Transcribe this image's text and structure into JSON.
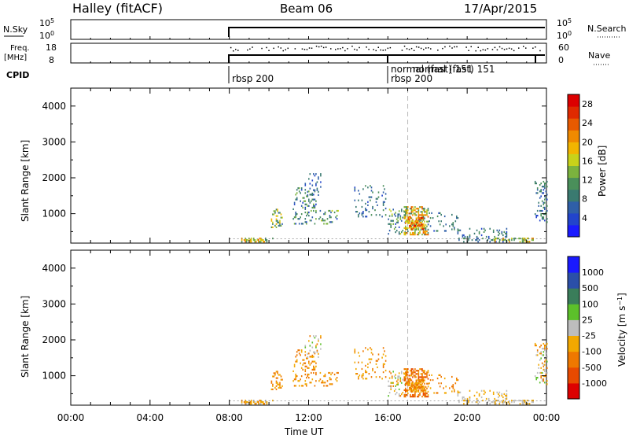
{
  "header": {
    "station": "Halley (fitACF)",
    "beam": "Beam 06",
    "date": "17/Apr/2015"
  },
  "panels": {
    "nsky": {
      "label": "N.Sky",
      "ticks": [
        "10^5",
        "10^0"
      ],
      "right_label": "N.Search",
      "right_ticks": [
        "10^5",
        "10^0"
      ]
    },
    "freq": {
      "label_line1": "Freq.",
      "label_line2": "[MHz]",
      "ticks": [
        "18",
        "8"
      ],
      "right_label": "Nave",
      "right_ticks": [
        "60",
        "0"
      ]
    },
    "cpid": {
      "label": "CPID",
      "entries": [
        {
          "t": 8.0,
          "text": "rbsp 200"
        },
        {
          "t": 16.0,
          "text": "rbsp 200"
        },
        {
          "t": 16.0,
          "text": "normal (fast) 151",
          "overlap": true
        },
        {
          "t": 16.0,
          "text": "normal (fast) 151",
          "overlap": true
        }
      ]
    }
  },
  "chart_data": [
    {
      "type": "heatmap",
      "name": "power",
      "ylabel": "Slant Range [km]",
      "yticks": [
        1000,
        2000,
        3000,
        4000
      ],
      "ylim": [
        180,
        4500
      ],
      "xlim": [
        0,
        24
      ],
      "colorbar": {
        "label": "Power [dB]",
        "ticks": [
          4,
          8,
          12,
          16,
          20,
          24,
          28
        ],
        "range": [
          0,
          30
        ],
        "colors": [
          "#1a1aff",
          "#2244cc",
          "#2f5fa8",
          "#3a7a70",
          "#4a8f5a",
          "#7bb33e",
          "#c8d21a",
          "#f2b500",
          "#f08a00",
          "#e85a00",
          "#e02a00",
          "#dd0000"
        ]
      },
      "echo_clusters": [
        {
          "t0": 8.6,
          "t1": 9.8,
          "r0": 200,
          "r1": 320,
          "v": [
            10,
            24
          ],
          "d": 0.55
        },
        {
          "t0": 9.8,
          "t1": 10.2,
          "r0": 200,
          "r1": 300,
          "v": [
            6,
            14
          ],
          "d": 0.35
        },
        {
          "t0": 10.1,
          "t1": 10.7,
          "r0": 600,
          "r1": 1100,
          "v": [
            6,
            20
          ],
          "d": 0.3
        },
        {
          "t0": 11.2,
          "t1": 12.4,
          "r0": 700,
          "r1": 1700,
          "v": [
            4,
            14
          ],
          "d": 0.16
        },
        {
          "t0": 11.8,
          "t1": 12.6,
          "r0": 1500,
          "r1": 2100,
          "v": [
            4,
            10
          ],
          "d": 0.15
        },
        {
          "t0": 12.5,
          "t1": 13.5,
          "r0": 700,
          "r1": 1100,
          "v": [
            4,
            16
          ],
          "d": 0.2
        },
        {
          "t0": 14.3,
          "t1": 15.9,
          "r0": 900,
          "r1": 1800,
          "v": [
            4,
            12
          ],
          "d": 0.1
        },
        {
          "t0": 16.0,
          "t1": 17.0,
          "r0": 420,
          "r1": 1100,
          "v": [
            4,
            16
          ],
          "d": 0.22
        },
        {
          "t0": 16.8,
          "t1": 18.0,
          "r0": 400,
          "r1": 1200,
          "v": [
            8,
            24
          ],
          "d": 0.52
        },
        {
          "t0": 17.0,
          "t1": 17.8,
          "r0": 550,
          "r1": 900,
          "v": [
            16,
            28
          ],
          "d": 0.55
        },
        {
          "t0": 18.0,
          "t1": 19.6,
          "r0": 500,
          "r1": 1000,
          "v": [
            4,
            12
          ],
          "d": 0.1
        },
        {
          "t0": 19.5,
          "t1": 22.0,
          "r0": 200,
          "r1": 600,
          "v": [
            4,
            12
          ],
          "d": 0.16
        },
        {
          "t0": 21.2,
          "t1": 23.4,
          "r0": 200,
          "r1": 320,
          "v": [
            8,
            22
          ],
          "d": 0.4
        },
        {
          "t0": 23.4,
          "t1": 24.0,
          "r0": 700,
          "r1": 1900,
          "v": [
            4,
            12
          ],
          "d": 0.22
        }
      ]
    },
    {
      "type": "heatmap",
      "name": "velocity",
      "ylabel": "Slant Range [km]",
      "yticks": [
        1000,
        2000,
        3000,
        4000
      ],
      "ylim": [
        180,
        4500
      ],
      "xlim": [
        0,
        24
      ],
      "colorbar": {
        "label": "Velocity [m s^-1]",
        "ticks": [
          "1000",
          "500",
          "100",
          "25",
          "-25",
          "-100",
          "-500",
          "-1000"
        ],
        "colors": [
          "#1a1aff",
          "#2b4fa8",
          "#3a7d5a",
          "#5cc02a",
          "#bdbdbd",
          "#f2a800",
          "#ee7800",
          "#e84a00",
          "#dd0000"
        ]
      },
      "echo_clusters": [
        {
          "t0": 8.6,
          "t1": 9.8,
          "r0": 200,
          "r1": 320,
          "v": [
            4,
            6
          ],
          "d": 0.55
        },
        {
          "t0": 9.8,
          "t1": 10.2,
          "r0": 200,
          "r1": 300,
          "v": [
            4,
            5
          ],
          "d": 0.35
        },
        {
          "t0": 10.1,
          "t1": 10.7,
          "r0": 600,
          "r1": 1100,
          "v": [
            5,
            6
          ],
          "d": 0.3
        },
        {
          "t0": 11.2,
          "t1": 12.4,
          "r0": 700,
          "r1": 1700,
          "v": [
            5,
            6
          ],
          "d": 0.16
        },
        {
          "t0": 11.8,
          "t1": 12.6,
          "r0": 1500,
          "r1": 2100,
          "v": [
            3,
            6
          ],
          "d": 0.15
        },
        {
          "t0": 12.5,
          "t1": 13.5,
          "r0": 700,
          "r1": 1100,
          "v": [
            5,
            6
          ],
          "d": 0.2
        },
        {
          "t0": 14.3,
          "t1": 15.9,
          "r0": 900,
          "r1": 1800,
          "v": [
            5,
            6
          ],
          "d": 0.1
        },
        {
          "t0": 16.0,
          "t1": 17.0,
          "r0": 420,
          "r1": 1100,
          "v": [
            3,
            6
          ],
          "d": 0.22
        },
        {
          "t0": 16.8,
          "t1": 18.0,
          "r0": 400,
          "r1": 1200,
          "v": [
            5,
            7
          ],
          "d": 0.52
        },
        {
          "t0": 17.0,
          "t1": 17.8,
          "r0": 550,
          "r1": 900,
          "v": [
            5,
            6
          ],
          "d": 0.55
        },
        {
          "t0": 18.0,
          "t1": 19.6,
          "r0": 500,
          "r1": 1000,
          "v": [
            5,
            6
          ],
          "d": 0.1
        },
        {
          "t0": 19.5,
          "t1": 22.0,
          "r0": 200,
          "r1": 600,
          "v": [
            4,
            5
          ],
          "d": 0.16
        },
        {
          "t0": 21.2,
          "t1": 23.4,
          "r0": 200,
          "r1": 320,
          "v": [
            4,
            5
          ],
          "d": 0.4
        },
        {
          "t0": 23.4,
          "t1": 24.0,
          "r0": 700,
          "r1": 1900,
          "v": [
            3,
            6
          ],
          "d": 0.22
        }
      ]
    }
  ],
  "x_axis": {
    "ticks": [
      "00:00",
      "04:00",
      "08:00",
      "12:00",
      "16:00",
      "20:00",
      "00:00"
    ],
    "tick_hours": [
      0,
      4,
      8,
      12,
      16,
      20,
      24
    ],
    "label": "Time UT"
  },
  "marker_hour": 17.0
}
